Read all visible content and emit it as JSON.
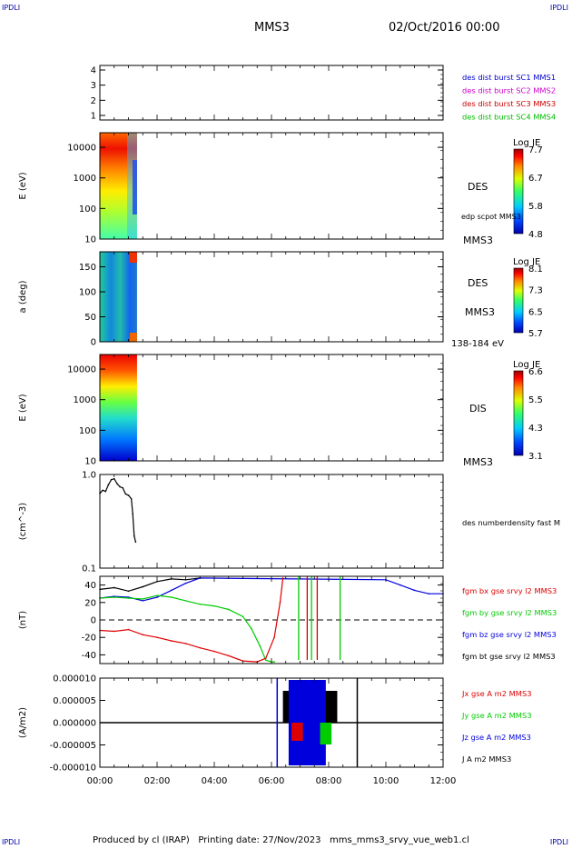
{
  "header": {
    "corner_left": "IPDLI",
    "corner_right": "IPDLI",
    "spacecraft": "MMS3",
    "date": "02/Oct/2016 00:00"
  },
  "footer": {
    "corner_left": "IPDLI",
    "corner_right": "IPDLI",
    "text": "Produced by cl (IRAP)   Printing date: 27/Nov/2023   mms_mms3_srvy_vue_web1.cl"
  },
  "time_axis": {
    "ticks": [
      "00:00",
      "02:00",
      "04:00",
      "06:00",
      "08:00",
      "10:00",
      "12:00"
    ],
    "range_hours": [
      0,
      12
    ]
  },
  "colors": {
    "mms1": "#0000cc",
    "mms2": "#cc00cc",
    "mms3": "#cc0000",
    "mms4": "#00bb00",
    "bx": "#dd0000",
    "by": "#00cc00",
    "bz": "#0000dd",
    "bt": "#000000"
  },
  "chart_data": [
    {
      "type": "line",
      "title": "",
      "ylabel": "",
      "ylim": [
        0.7,
        4.3
      ],
      "yticks": [
        "4",
        "3",
        "2",
        "1"
      ],
      "legend": [
        {
          "label": "des dist burst SC1 MMS1",
          "color": "#0000cc"
        },
        {
          "label": "des dist burst SC2 MMS2",
          "color": "#cc00cc"
        },
        {
          "label": "des dist burst SC3 MMS3",
          "color": "#cc0000"
        },
        {
          "label": "des dist burst SC4 MMS4",
          "color": "#00bb00"
        }
      ]
    },
    {
      "type": "heatmap",
      "ylabel": "E (eV)",
      "yscale": "log",
      "ylim": [
        10,
        30000
      ],
      "yticks": [
        "10000",
        "1000",
        "100",
        "10"
      ],
      "data_extent_hours": [
        0,
        1.3
      ],
      "right_labels": [
        "DES",
        "edp scpot MMS3",
        "MMS3"
      ],
      "colorbar": {
        "title": "Log JE",
        "ticks": [
          "7.7",
          "6.7",
          "5.8",
          "4.8"
        ]
      }
    },
    {
      "type": "heatmap",
      "ylabel": "a (deg)",
      "ylim": [
        0,
        180
      ],
      "yticks": [
        "150",
        "100",
        "50",
        "0"
      ],
      "data_extent_hours": [
        0,
        1.3
      ],
      "right_labels": [
        "DES",
        "MMS3",
        "138-184 eV"
      ],
      "colorbar": {
        "title": "Log JE",
        "ticks": [
          "8.1",
          "7.3",
          "6.5",
          "5.7"
        ]
      }
    },
    {
      "type": "heatmap",
      "ylabel": "E (eV)",
      "yscale": "log",
      "ylim": [
        10,
        30000
      ],
      "yticks": [
        "10000",
        "1000",
        "100",
        "10"
      ],
      "data_extent_hours": [
        0,
        1.3
      ],
      "right_labels": [
        "DIS",
        "MMS3"
      ],
      "colorbar": {
        "title": "Log JE",
        "ticks": [
          "6.6",
          "5.5",
          "4.3",
          "3.1"
        ]
      }
    },
    {
      "type": "line",
      "ylabel": "(cm^-3)",
      "yscale": "log",
      "ylim": [
        0.1,
        1.0
      ],
      "yticks": [
        "1.0",
        "0.1"
      ],
      "legend": [
        {
          "label": "des numberdensity fast M",
          "color": "#000000"
        }
      ],
      "series": [
        {
          "name": "des numberdensity fast M",
          "x": [
            0.0,
            0.1,
            0.2,
            0.3,
            0.4,
            0.5,
            0.6,
            0.7,
            0.8,
            0.9,
            1.0,
            1.1,
            1.15,
            1.2,
            1.25
          ],
          "y": [
            0.63,
            0.68,
            0.66,
            0.78,
            0.88,
            0.9,
            0.8,
            0.74,
            0.72,
            0.62,
            0.6,
            0.55,
            0.38,
            0.22,
            0.19
          ]
        }
      ]
    },
    {
      "type": "line",
      "ylabel": "(nT)",
      "ylim": [
        -50,
        50
      ],
      "yticks": [
        "40",
        "20",
        "0",
        "-20",
        "-40"
      ],
      "legend": [
        {
          "label": "fgm bx gse srvy l2 MMS3",
          "color": "#dd0000"
        },
        {
          "label": "fgm by gse srvy l2 MMS3",
          "color": "#00cc00"
        },
        {
          "label": "fgm bz gse srvy l2 MMS3",
          "color": "#0000dd"
        },
        {
          "label": "fgm bt gse srvy l2 MMS3",
          "color": "#000000"
        }
      ],
      "series": [
        {
          "name": "fgm bt gse srvy l2 MMS3",
          "x": [
            0.0,
            0.5,
            1.0,
            1.5,
            2.0,
            2.5,
            3.0,
            3.5
          ],
          "y": [
            35,
            37,
            33,
            38,
            44,
            47,
            46,
            48
          ]
        },
        {
          "name": "fgm bz gse srvy l2 MMS3",
          "x": [
            0.0,
            0.5,
            1.0,
            1.5,
            2.0,
            2.5,
            3.0,
            3.5,
            10.0,
            10.5,
            11.0,
            11.5,
            12.0
          ],
          "y": [
            25,
            27,
            26,
            22,
            26,
            34,
            42,
            48,
            46,
            40,
            34,
            30,
            30
          ]
        },
        {
          "name": "fgm by gse srvy l2 MMS3",
          "x": [
            0.0,
            0.5,
            1.0,
            1.5,
            2.0,
            2.5,
            3.0,
            3.5,
            4.0,
            4.5,
            5.0,
            5.3,
            5.6,
            5.8,
            6.0,
            6.1
          ],
          "y": [
            25,
            26,
            25,
            24,
            28,
            26,
            22,
            18,
            16,
            12,
            4,
            -10,
            -30,
            -46,
            -48,
            -48
          ]
        },
        {
          "name": "fgm bx gse srvy l2 MMS3",
          "x": [
            0.0,
            0.5,
            1.0,
            1.5,
            2.0,
            2.5,
            3.0,
            3.5,
            4.0,
            4.5,
            5.0,
            5.5,
            5.8,
            6.1,
            6.3,
            6.4
          ],
          "y": [
            -12,
            -13,
            -11,
            -17,
            -20,
            -24,
            -27,
            -32,
            -36,
            -41,
            -47,
            -48,
            -44,
            -20,
            20,
            48
          ]
        }
      ],
      "zero_line": 0
    },
    {
      "type": "line",
      "ylabel": "(A/m2)",
      "ylim": [
        -1e-05,
        1e-05
      ],
      "yticks": [
        "0.000010",
        "0.000005",
        "0.000000",
        "-0.000005",
        "-0.000010"
      ],
      "legend": [
        {
          "label": "Jx gse A m2 MMS3",
          "color": "#dd0000"
        },
        {
          "label": "Jy gse A m2 MMS3",
          "color": "#00cc00"
        },
        {
          "label": "Jz gse A m2 MMS3",
          "color": "#0000dd"
        },
        {
          "label": "J A m2 MMS3",
          "color": "#000000"
        }
      ]
    }
  ]
}
